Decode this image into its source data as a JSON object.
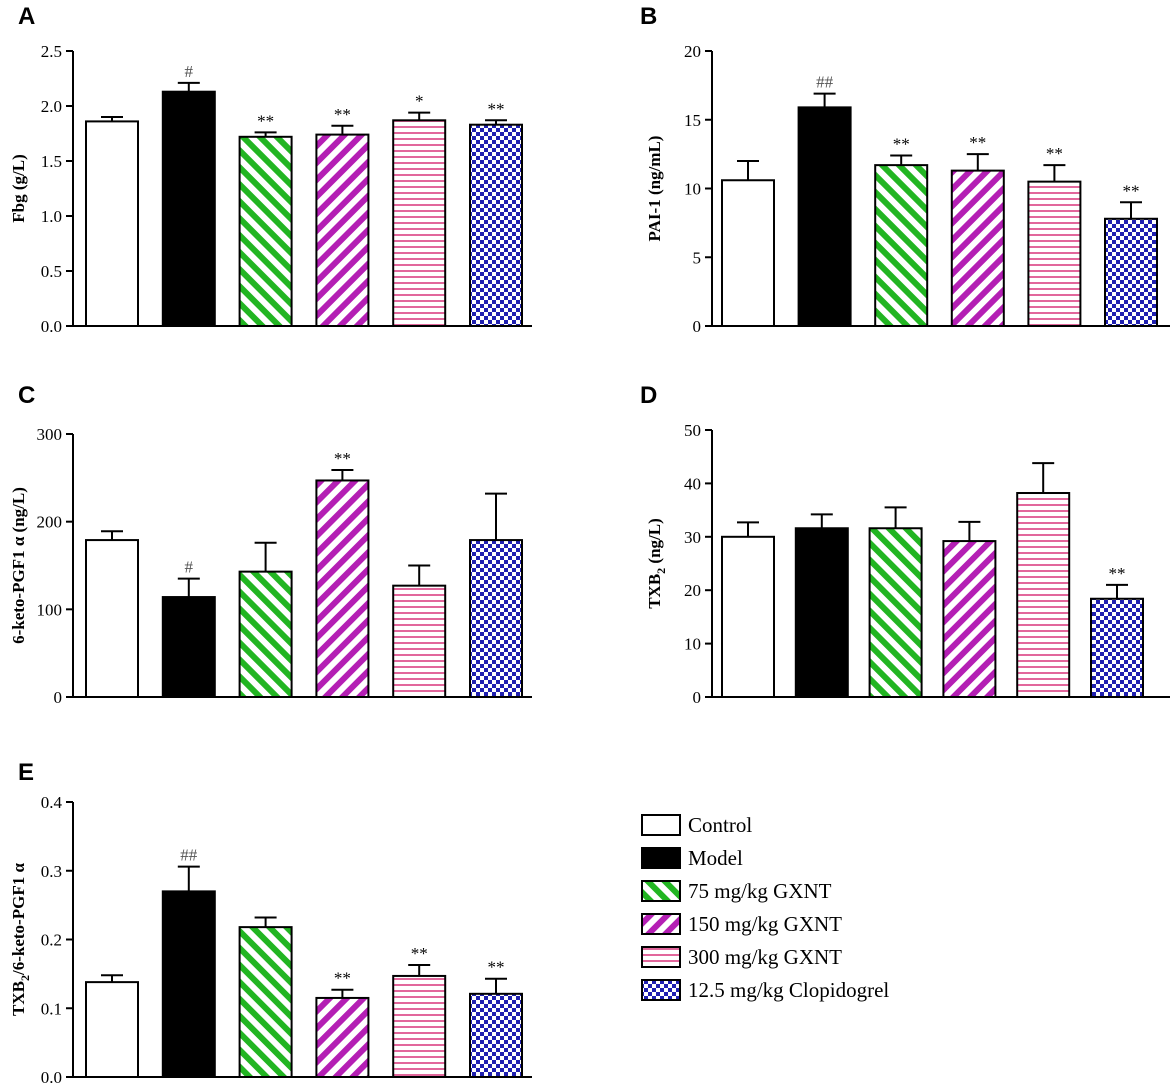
{
  "figure": {
    "series_styles": [
      {
        "name": "Control",
        "color": "#ffffff",
        "pattern": "none"
      },
      {
        "name": "Model",
        "color": "#000000",
        "pattern": "solid"
      },
      {
        "name": "75 mg/kg GXNT",
        "color": "#22b522",
        "pattern": "diagonal"
      },
      {
        "name": "150 mg/kg GXNT",
        "color": "#b41fb4",
        "pattern": "diagonal"
      },
      {
        "name": "300 mg/kg GXNT",
        "color": "#e2679c",
        "pattern": "horizontal"
      },
      {
        "name": "12.5 mg/kg Clopidogrel",
        "color": "#1f1fb0",
        "pattern": "checker"
      }
    ]
  },
  "legend": {
    "items": [
      "Control",
      "Model",
      "75 mg/kg GXNT",
      "150 mg/kg GXNT",
      "300 mg/kg GXNT",
      "12.5 mg/kg Clopidogrel"
    ]
  },
  "chart_data": [
    {
      "panel": "A",
      "type": "bar",
      "ylabel": "Fbg (g/L)",
      "xlabel": "",
      "categories": [
        "Control",
        "Model",
        "75 mg/kg GXNT",
        "150 mg/kg GXNT",
        "300 mg/kg GXNT",
        "12.5 mg/kg Clopidogrel"
      ],
      "values": [
        1.86,
        2.13,
        1.72,
        1.74,
        1.87,
        1.83
      ],
      "errors": [
        0.04,
        0.08,
        0.04,
        0.08,
        0.07,
        0.04
      ],
      "annotations": [
        "",
        "#",
        "**",
        "**",
        "*",
        "**"
      ],
      "ylim": [
        0,
        2.5
      ],
      "yticks": [
        0,
        0.5,
        1.0,
        1.5,
        2.0,
        2.5
      ],
      "ytick_labels": [
        "0.0",
        "0.5",
        "1.0",
        "1.5",
        "2.0",
        "2.5"
      ]
    },
    {
      "panel": "B",
      "type": "bar",
      "ylabel": "PAI-1 (ng/mL)",
      "xlabel": "",
      "categories": [
        "Control",
        "Model",
        "75 mg/kg GXNT",
        "150 mg/kg GXNT",
        "300 mg/kg GXNT",
        "12.5 mg/kg Clopidogrel"
      ],
      "values": [
        10.6,
        15.9,
        11.7,
        11.3,
        10.5,
        7.8
      ],
      "errors": [
        1.4,
        1.0,
        0.7,
        1.2,
        1.2,
        1.2
      ],
      "annotations": [
        "",
        "##",
        "**",
        "**",
        "**",
        "**"
      ],
      "ylim": [
        0,
        20
      ],
      "yticks": [
        0,
        5,
        10,
        15,
        20
      ],
      "ytick_labels": [
        "0",
        "5",
        "10",
        "15",
        "20"
      ]
    },
    {
      "panel": "C",
      "type": "bar",
      "ylabel": "6-keto-PGF1 α (ng/L)",
      "xlabel": "",
      "categories": [
        "Control",
        "Model",
        "75 mg/kg GXNT",
        "150 mg/kg GXNT",
        "300 mg/kg GXNT",
        "12.5 mg/kg Clopidogrel"
      ],
      "values": [
        179,
        114,
        143,
        247,
        127,
        179
      ],
      "errors": [
        10,
        21,
        33,
        12,
        23,
        53
      ],
      "annotations": [
        "",
        "#",
        "",
        "**",
        "",
        ""
      ],
      "ylim": [
        0,
        300
      ],
      "yticks": [
        0,
        100,
        200,
        300
      ],
      "ytick_labels": [
        "0",
        "100",
        "200",
        "300"
      ]
    },
    {
      "panel": "D",
      "type": "bar",
      "ylabel": "TXB2 (ng/L)",
      "ylabel_parts": [
        "TXB",
        "2",
        " (ng/L)"
      ],
      "xlabel": "",
      "categories": [
        "Control",
        "Model",
        "75 mg/kg GXNT",
        "150 mg/kg GXNT",
        "300 mg/kg GXNT",
        "12.5 mg/kg Clopidogrel"
      ],
      "values": [
        30.0,
        31.6,
        31.6,
        29.2,
        38.2,
        18.4
      ],
      "errors": [
        2.7,
        2.6,
        3.9,
        3.6,
        5.6,
        2.6
      ],
      "annotations": [
        "",
        "",
        "",
        "",
        "",
        "**"
      ],
      "ylim": [
        0,
        50
      ],
      "yticks": [
        0,
        10,
        20,
        30,
        40,
        50
      ],
      "ytick_labels": [
        "0",
        "10",
        "20",
        "30",
        "40",
        "50"
      ]
    },
    {
      "panel": "E",
      "type": "bar",
      "ylabel": "TXB2/6-keto-PGF1 α",
      "ylabel_parts": [
        "TXB",
        "2",
        "/6-keto-PGF1 α"
      ],
      "xlabel": "",
      "categories": [
        "Control",
        "Model",
        "75 mg/kg GXNT",
        "150 mg/kg GXNT",
        "300 mg/kg GXNT",
        "12.5 mg/kg Clopidogrel"
      ],
      "values": [
        0.138,
        0.27,
        0.218,
        0.115,
        0.147,
        0.121
      ],
      "errors": [
        0.01,
        0.036,
        0.014,
        0.012,
        0.016,
        0.022
      ],
      "annotations": [
        "",
        "##",
        "",
        "**",
        "**",
        "**"
      ],
      "ylim": [
        0,
        0.4
      ],
      "yticks": [
        0,
        0.1,
        0.2,
        0.3,
        0.4
      ],
      "ytick_labels": [
        "0.0",
        "0.1",
        "0.2",
        "0.3",
        "0.4"
      ]
    }
  ]
}
